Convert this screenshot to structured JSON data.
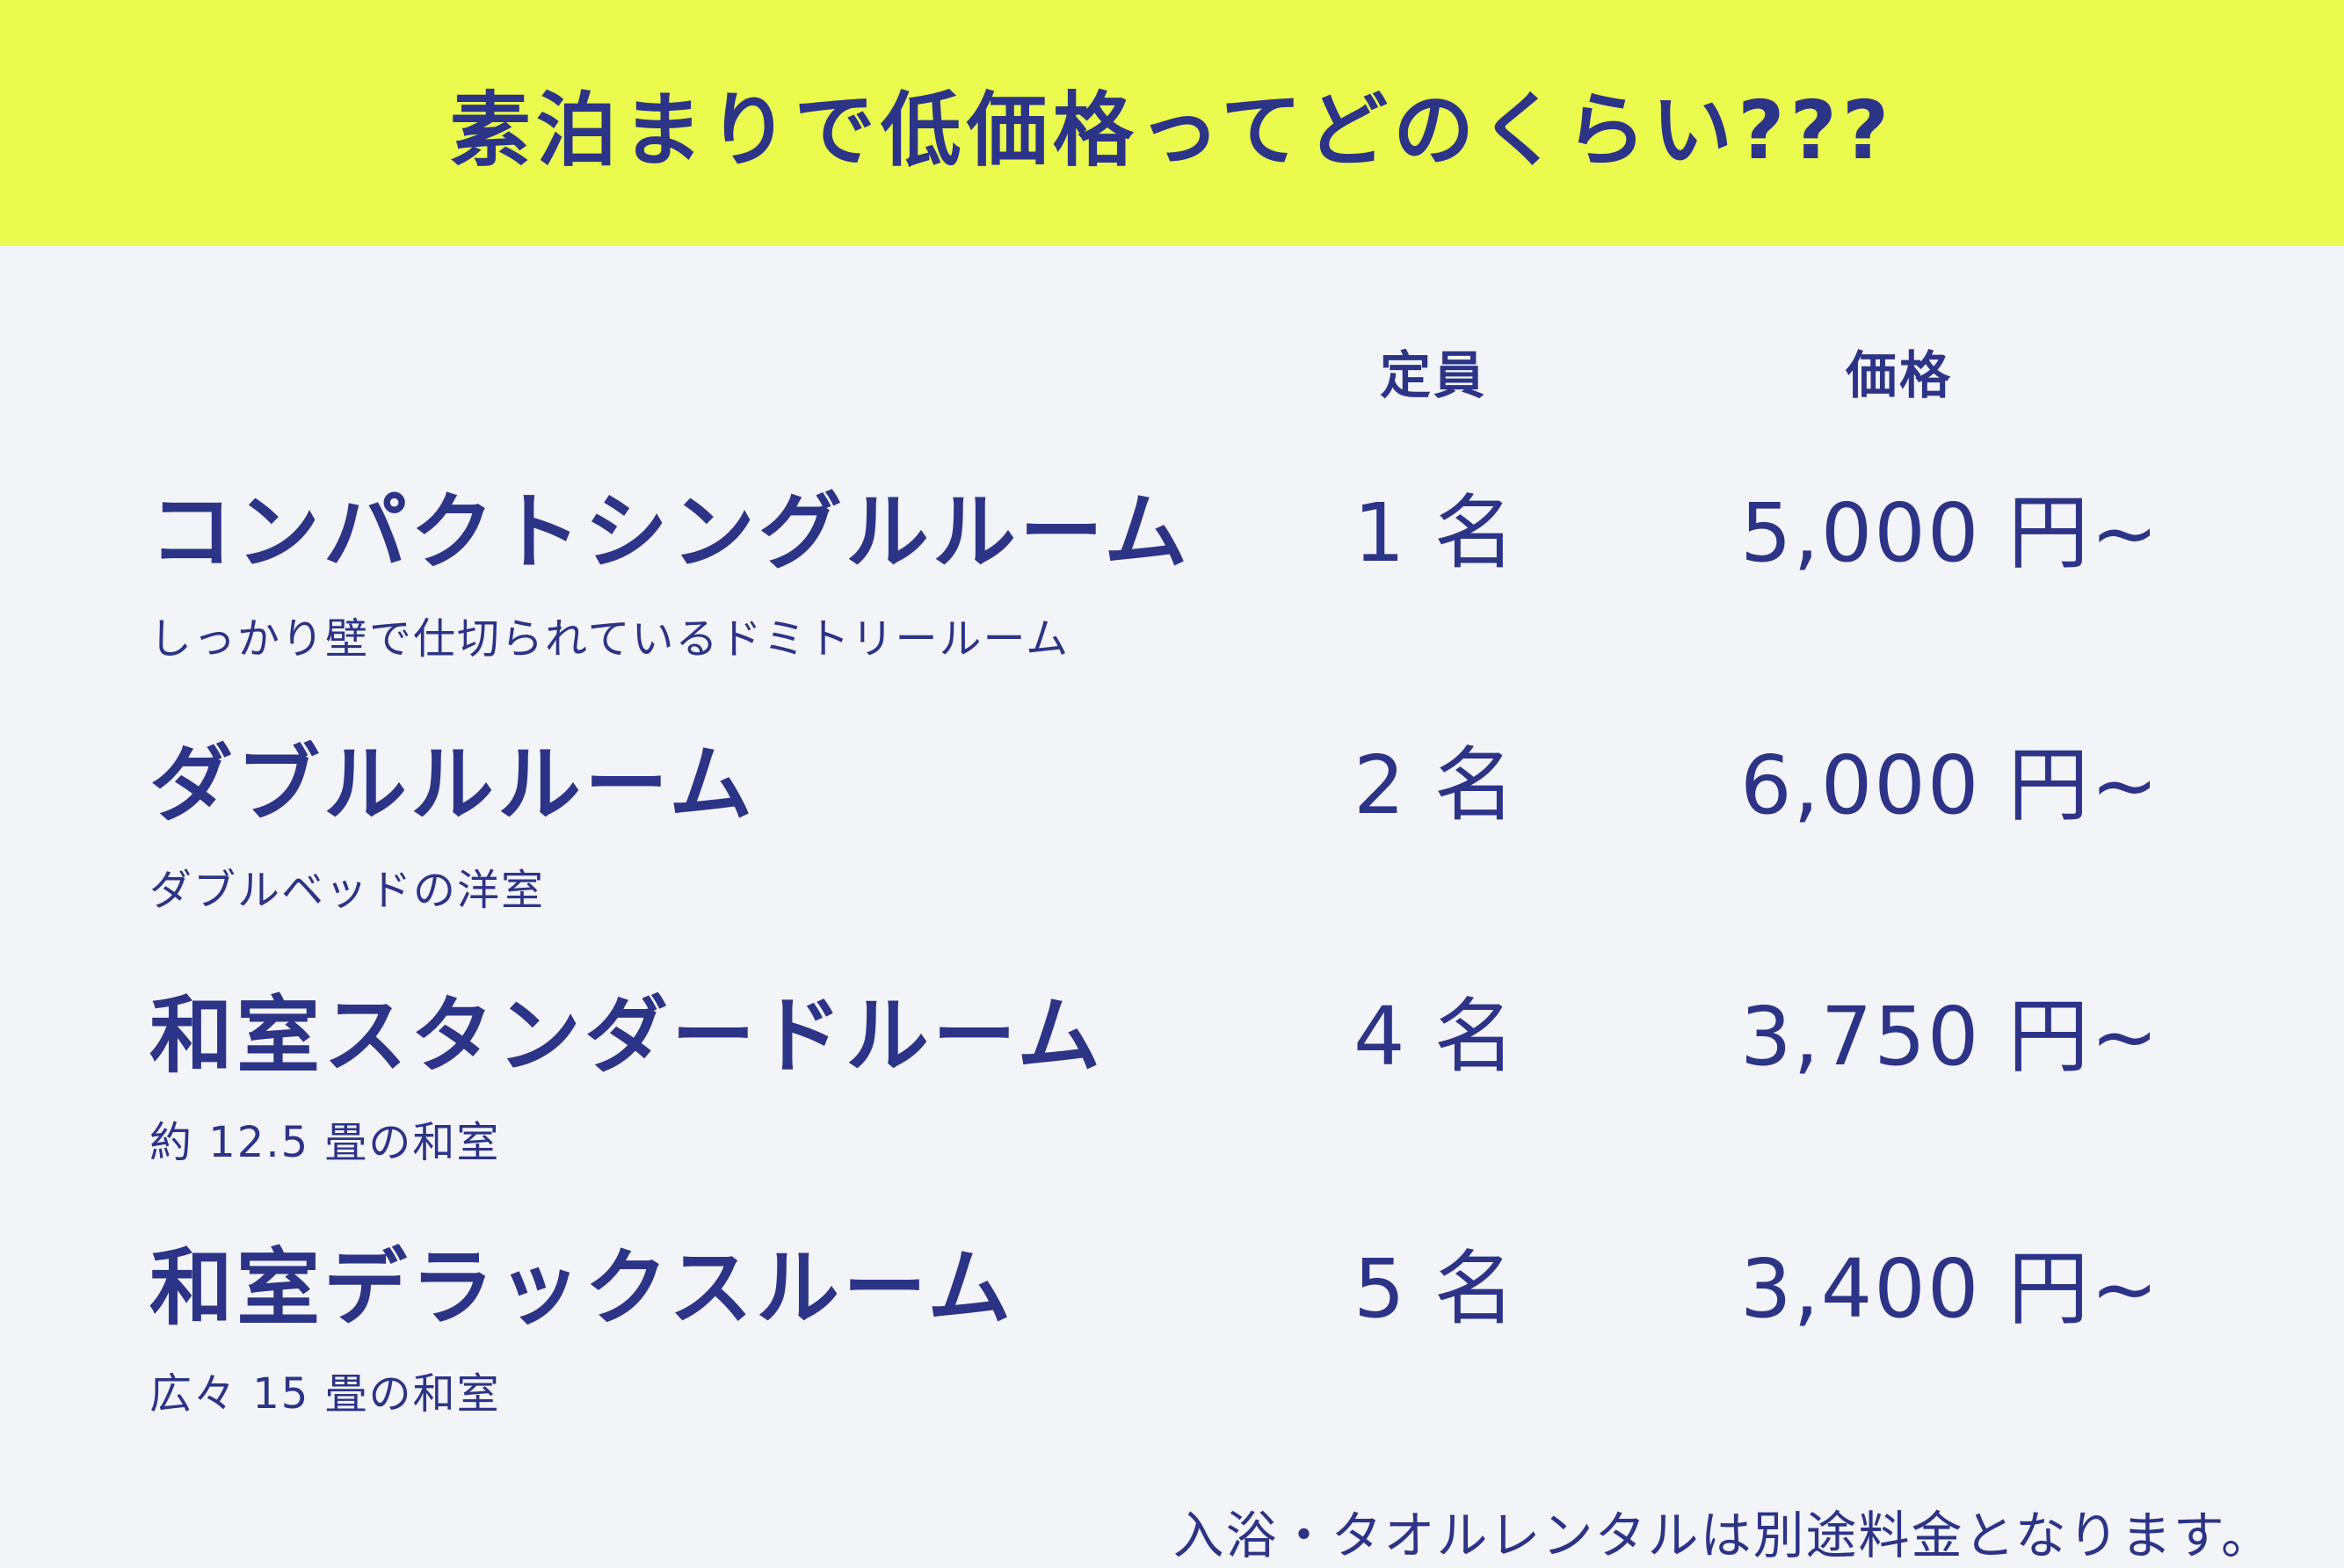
{
  "banner": {
    "title": "素泊まりで低価格ってどのくらい???",
    "background_color": "#eafb4e",
    "text_color": "#2c3487"
  },
  "page": {
    "background_color": "#f2f4f8"
  },
  "table": {
    "columns": {
      "capacity": "定員",
      "price": "価格"
    },
    "rows": [
      {
        "name": "コンパクトシングルルーム",
        "description": "しっかり壁で仕切られているドミトリールーム",
        "capacity": "1 名",
        "price": "5,000 円~"
      },
      {
        "name": "ダブルルルーム",
        "description": "ダブルベッドの洋室",
        "capacity": "2 名",
        "price": "6,000 円~"
      },
      {
        "name": "和室スタンダードルーム",
        "description": "約 12.5 畳の和室",
        "capacity": "4 名",
        "price": "3,750 円~"
      },
      {
        "name": "和室デラックスルーム",
        "description": "広々 15 畳の和室",
        "capacity": "5 名",
        "price": "3,400 円~"
      }
    ],
    "footnote": "入浴・タオルレンタルは別途料金となります。"
  }
}
